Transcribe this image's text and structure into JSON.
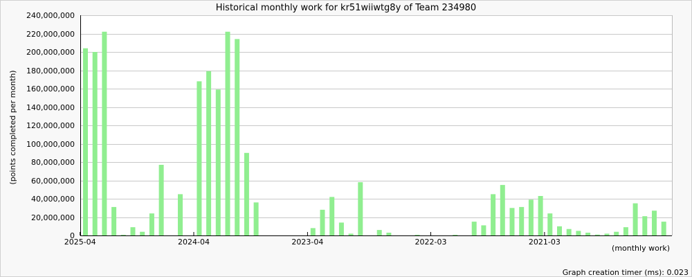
{
  "page": {
    "footer": "Graph creation timer (ms): 0.023"
  },
  "colors": {
    "background": "#f8f8f8",
    "plot_background": "#ffffff",
    "bar": "#90ee90",
    "grid": "#c8c8c8",
    "axis": "#000000"
  },
  "chart_data": {
    "type": "bar",
    "title": "Historical monthly work for kr51wiiwtg8y of Team 234980",
    "xlabel": "(monthly work)",
    "ylabel": "(points completed per month)",
    "ylim": [
      0,
      240000000
    ],
    "yticks": [
      0,
      20000000,
      40000000,
      60000000,
      80000000,
      100000000,
      120000000,
      140000000,
      160000000,
      180000000,
      200000000,
      220000000,
      240000000
    ],
    "ytick_labels": [
      "0",
      "20,000,000",
      "40,000,000",
      "60,000,000",
      "80,000,000",
      "100,000,000",
      "120,000,000",
      "140,000,000",
      "160,000,000",
      "180,000,000",
      "200,000,000",
      "220,000,000",
      "240,000,000"
    ],
    "x_tick_labels": [
      {
        "index": 0,
        "label": "2025-04"
      },
      {
        "index": 12,
        "label": "2024-04"
      },
      {
        "index": 24,
        "label": "2023-04"
      },
      {
        "index": 37,
        "label": "2022-03"
      },
      {
        "index": 49,
        "label": "2021-03"
      }
    ],
    "grid": true,
    "legend": "none",
    "values": [
      204000000,
      200000000,
      222000000,
      31000000,
      500000,
      9000000,
      4000000,
      24000000,
      77000000,
      0,
      45000000,
      0,
      168000000,
      179000000,
      159000000,
      222000000,
      214000000,
      90000000,
      36000000,
      0,
      0,
      0,
      0,
      0,
      8000000,
      28000000,
      42000000,
      14000000,
      2000000,
      58000000,
      0,
      6000000,
      3000000,
      0,
      0,
      300000,
      0,
      0,
      0,
      300000,
      0,
      15000000,
      11000000,
      45000000,
      55000000,
      30000000,
      31000000,
      39000000,
      43000000,
      24000000,
      10000000,
      7000000,
      5000000,
      3000000,
      1000000,
      2000000,
      4000000,
      9000000,
      35000000,
      21000000,
      27000000,
      15000000
    ]
  }
}
